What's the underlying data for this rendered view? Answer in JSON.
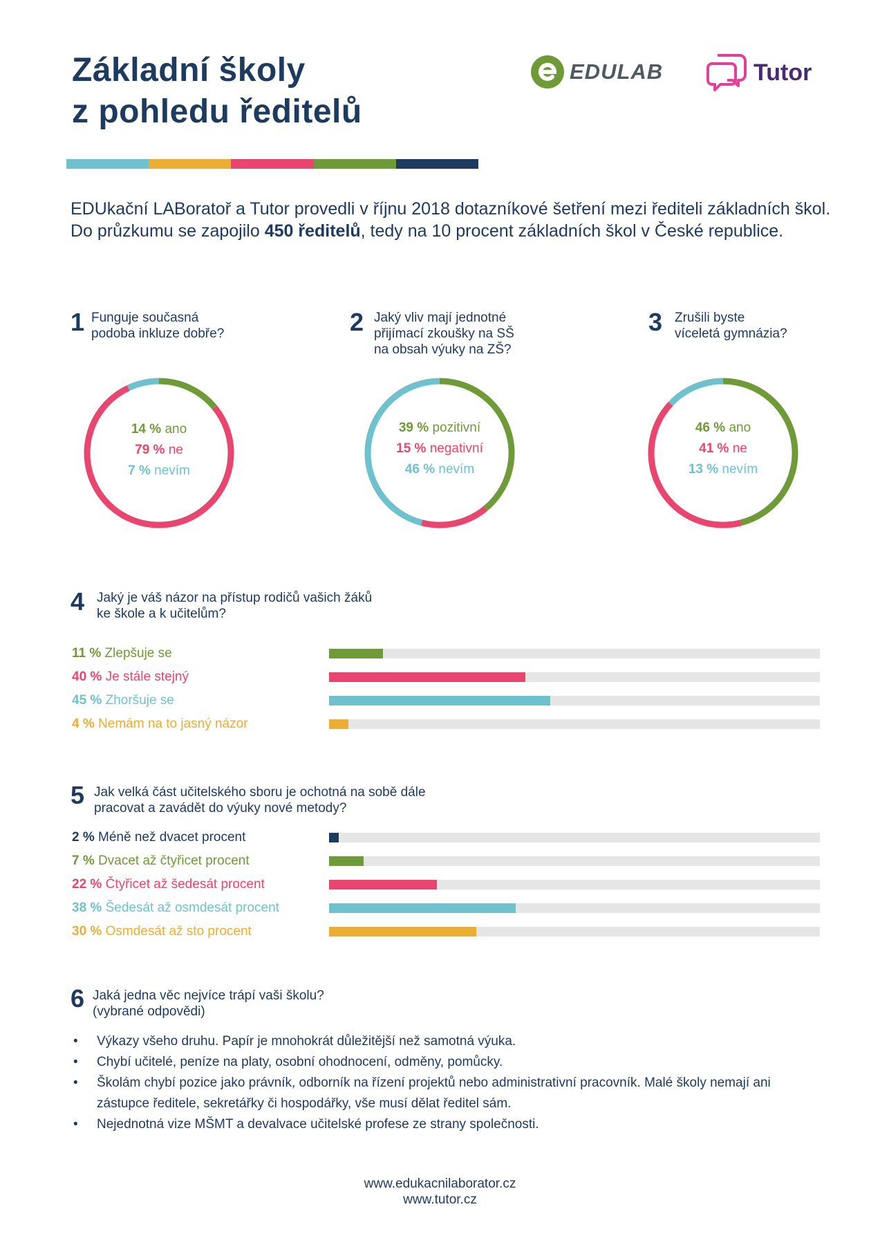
{
  "header": {
    "title_line1": "Základní školy",
    "title_line2": "z pohledu ředitelů",
    "logo_edulab": "EDULAB",
    "logo_tutor": "Tutor"
  },
  "stripe_colors": [
    "#6fc2cd",
    "#e9ae33",
    "#e8466f",
    "#6f9a38",
    "#1d3a5f"
  ],
  "intro": {
    "before": "EDUkační LABoratoř a Tutor provedli v říjnu 2018 dotazníkové šetření mezi řediteli základních škol. Do průzkumu se zapojilo ",
    "bold": "450 ředitelů",
    "after": ", tedy na 10 procent základních škol v České republice."
  },
  "colors": {
    "green": "#6f9a38",
    "pink": "#e8466f",
    "teal": "#6fc2cd",
    "orange": "#e9ae33",
    "navy": "#1d3a5f",
    "track": "#e6e6e6"
  },
  "q1": {
    "num": "1",
    "text": [
      "Funguje současná",
      "podoba inkluze dobře?"
    ],
    "items": [
      {
        "pct": "14 %",
        "label": "ano"
      },
      {
        "pct": "79 %",
        "label": "ne"
      },
      {
        "pct": "7 %",
        "label": "nevím"
      }
    ]
  },
  "q2": {
    "num": "2",
    "text": [
      "Jaký vliv mají jednotné",
      "přijímací zkoušky na SŠ",
      "na obsah výuky na ZŠ?"
    ],
    "items": [
      {
        "pct": "39 %",
        "label": "pozitivní"
      },
      {
        "pct": "15 %",
        "label": "negativní"
      },
      {
        "pct": "46 %",
        "label": "nevím"
      }
    ]
  },
  "q3": {
    "num": "3",
    "text": [
      "Zrušili byste",
      "víceletá gymnázia?"
    ],
    "items": [
      {
        "pct": "46 %",
        "label": "ano"
      },
      {
        "pct": "41 %",
        "label": "ne"
      },
      {
        "pct": "13 %",
        "label": "nevím"
      }
    ]
  },
  "q4": {
    "num": "4",
    "text": [
      "Jaký je váš názor na přístup rodičů vašich žáků",
      "ke škole a k učitelům?"
    ],
    "items": [
      {
        "pct": "11 %",
        "label": "Zlepšuje se"
      },
      {
        "pct": "40 %",
        "label": "Je stále stejný"
      },
      {
        "pct": "45 %",
        "label": "Zhoršuje se"
      },
      {
        "pct": "4 %",
        "label": "Nemám na to jasný názor"
      }
    ]
  },
  "q5": {
    "num": "5",
    "text": [
      "Jak velká část učitelského sboru je ochotná na sobě dále",
      "pracovat a zavádět do výuky nové metody?"
    ],
    "items": [
      {
        "pct": "2 %",
        "label": "Méně než dvacet procent"
      },
      {
        "pct": "7 %",
        "label": "Dvacet až čtyřicet procent"
      },
      {
        "pct": "22 %",
        "label": "Čtyřicet až šedesát procent"
      },
      {
        "pct": "38 %",
        "label": "Šedesát až osmdesát procent"
      },
      {
        "pct": "30 %",
        "label": "Osmdesát až sto procent"
      }
    ]
  },
  "q6": {
    "num": "6",
    "text": [
      "Jaká jedna věc nejvíce trápí vaši školu?",
      "(vybrané odpovědi)"
    ],
    "bullets": [
      "Výkazy všeho druhu. Papír je mnohokrát důležitější než samotná výuka.",
      "Chybí učitelé, peníze na platy, osobní ohodnocení, odměny, pomůcky.",
      "Školám chybí pozice jako právník, odborník na řízení projektů nebo administrativní pracovník. Malé školy nemají ani zástupce ředitele, sekretářky či hospodářky, vše musí dělat ředitel sám.",
      "Nejednotná vize MŠMT a devalvace učitelské profese ze strany společnosti."
    ]
  },
  "chart_data": [
    {
      "type": "pie",
      "title": "Funguje současná podoba inkluze dobře?",
      "categories": [
        "ano",
        "ne",
        "nevím"
      ],
      "values": [
        14,
        79,
        7
      ],
      "colors": [
        "#6f9a38",
        "#e8466f",
        "#6fc2cd"
      ]
    },
    {
      "type": "pie",
      "title": "Jaký vliv mají jednotné přijímací zkoušky na SŠ na obsah výuky na ZŠ?",
      "categories": [
        "pozitivní",
        "negativní",
        "nevím"
      ],
      "values": [
        39,
        15,
        46
      ],
      "colors": [
        "#6f9a38",
        "#e8466f",
        "#6fc2cd"
      ]
    },
    {
      "type": "pie",
      "title": "Zrušili byste víceletá gymnázia?",
      "categories": [
        "ano",
        "ne",
        "nevím"
      ],
      "values": [
        46,
        41,
        13
      ],
      "colors": [
        "#6f9a38",
        "#e8466f",
        "#6fc2cd"
      ]
    },
    {
      "type": "bar",
      "title": "Jaký je váš názor na přístup rodičů vašich žáků ke škole a k učitelům?",
      "categories": [
        "Zlepšuje se",
        "Je stále stejný",
        "Zhoršuje se",
        "Nemám na to jasný názor"
      ],
      "values": [
        11,
        40,
        45,
        4
      ],
      "colors": [
        "#6f9a38",
        "#e8466f",
        "#6fc2cd",
        "#e9ae33"
      ],
      "ylim": [
        0,
        100
      ]
    },
    {
      "type": "bar",
      "title": "Jak velká část učitelského sboru je ochotná na sobě dále pracovat a zavádět do výuky nové metody?",
      "categories": [
        "Méně než dvacet procent",
        "Dvacet až čtyřicet procent",
        "Čtyřicet až šedesát procent",
        "Šedesát až osmdesát procent",
        "Osmdesát až sto procent"
      ],
      "values": [
        2,
        7,
        22,
        38,
        30
      ],
      "colors": [
        "#1d3a5f",
        "#6f9a38",
        "#e8466f",
        "#6fc2cd",
        "#e9ae33"
      ],
      "ylim": [
        0,
        100
      ]
    }
  ],
  "footer": {
    "line1": "www.edukacnilaborator.cz",
    "line2": "www.tutor.cz"
  }
}
